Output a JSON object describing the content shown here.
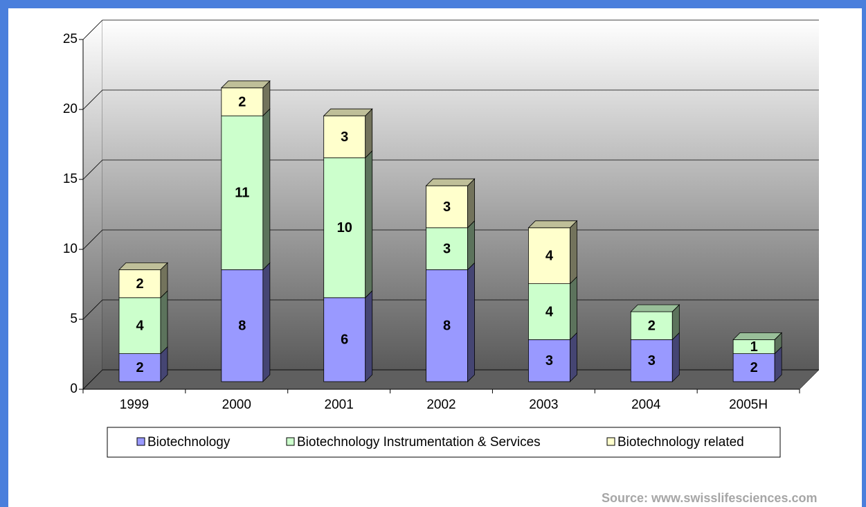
{
  "chart_data": {
    "type": "stacked-bar-3d",
    "categories": [
      "1999",
      "2000",
      "2001",
      "2002",
      "2003",
      "2004",
      "2005H"
    ],
    "series": [
      {
        "name": "Biotechnology",
        "color": "#9999ff",
        "values": [
          2,
          8,
          6,
          8,
          3,
          3,
          2
        ]
      },
      {
        "name": "Biotechnology Instrumentation & Services",
        "color": "#ccffcc",
        "values": [
          4,
          11,
          10,
          3,
          4,
          2,
          1
        ]
      },
      {
        "name": "Biotechnology related",
        "color": "#ffffcc",
        "values": [
          2,
          2,
          3,
          3,
          4,
          0,
          0
        ]
      }
    ],
    "ylim": [
      0,
      25
    ],
    "yticks": [
      0,
      5,
      10,
      15,
      20,
      25
    ],
    "grid": true,
    "legend": "bottom",
    "source": "Source: www.swisslifesciences.com"
  }
}
